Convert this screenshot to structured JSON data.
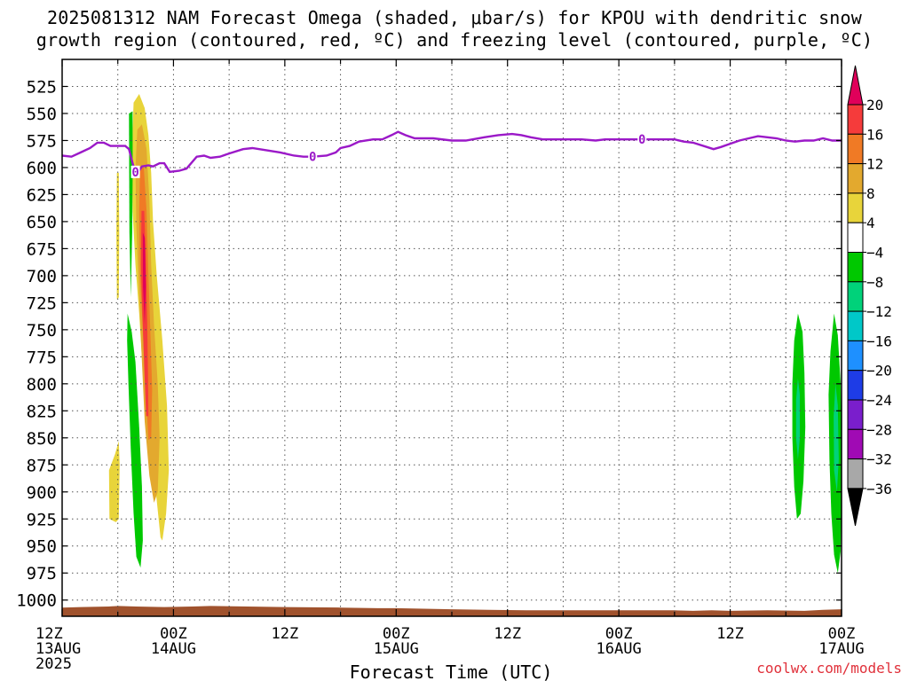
{
  "title": {
    "line1": "2025081312 NAM Forecast Omega (shaded, μbar/s) for KPOU with dendritic snow",
    "line2": "growth region (contoured, red, ºC) and freezing level (contoured, purple, ºC)"
  },
  "credit": "coolwx.com/models",
  "chart_data": {
    "type": "contour",
    "xlabel": "Forecast Time (UTC)",
    "ylabel": "",
    "xlim": [
      0,
      84
    ],
    "ylim": [
      1015,
      500
    ],
    "y_ticks": [
      525,
      550,
      575,
      600,
      625,
      650,
      675,
      700,
      725,
      750,
      775,
      800,
      825,
      850,
      875,
      900,
      925,
      950,
      975,
      1000
    ],
    "x_ticks": [
      {
        "hour": 0,
        "label": "12Z",
        "sub": "13AUG",
        "sub2": "2025"
      },
      {
        "hour": 12,
        "label": "00Z",
        "sub": "14AUG",
        "sub2": ""
      },
      {
        "hour": 24,
        "label": "12Z",
        "sub": "",
        "sub2": ""
      },
      {
        "hour": 36,
        "label": "00Z",
        "sub": "15AUG",
        "sub2": ""
      },
      {
        "hour": 48,
        "label": "12Z",
        "sub": "",
        "sub2": ""
      },
      {
        "hour": 60,
        "label": "00Z",
        "sub": "16AUG",
        "sub2": ""
      },
      {
        "hour": 72,
        "label": "12Z",
        "sub": "",
        "sub2": ""
      },
      {
        "hour": 84,
        "label": "00Z",
        "sub": "17AUG",
        "sub2": ""
      }
    ],
    "grid": true,
    "colorbar": {
      "levels": [
        20,
        16,
        12,
        8,
        4,
        -4,
        -8,
        -12,
        -16,
        -20,
        -24,
        -28,
        -32,
        -36
      ],
      "colors": [
        "#e0005a",
        "#f53b3b",
        "#f07a25",
        "#e3a92e",
        "#e8d43a",
        "#ffffff",
        "#00c800",
        "#00d27a",
        "#00c8c8",
        "#1e90ff",
        "#1e3ce6",
        "#7a1ecc",
        "#a00ab4",
        "#a8a8a8",
        "#000000"
      ]
    },
    "freezing_level": {
      "label": "0",
      "label_hours": [
        7.9,
        27.0,
        62.5
      ],
      "points": [
        [
          0,
          589
        ],
        [
          1,
          590
        ],
        [
          2,
          586
        ],
        [
          3,
          582
        ],
        [
          3.8,
          577
        ],
        [
          4.5,
          577
        ],
        [
          5.2,
          580
        ],
        [
          6,
          580
        ],
        [
          6.8,
          580
        ],
        [
          7.2,
          583
        ],
        [
          7.6,
          596
        ],
        [
          7.9,
          604
        ],
        [
          8.2,
          604
        ],
        [
          8.6,
          599
        ],
        [
          9.3,
          598
        ],
        [
          9.8,
          599
        ],
        [
          10.5,
          596
        ],
        [
          11,
          596
        ],
        [
          11.6,
          604
        ],
        [
          12.6,
          603
        ],
        [
          13.4,
          601
        ],
        [
          14.5,
          590
        ],
        [
          15.3,
          589
        ],
        [
          16,
          591
        ],
        [
          17,
          590
        ],
        [
          18,
          587
        ],
        [
          19.5,
          583
        ],
        [
          20.5,
          582
        ],
        [
          22,
          584
        ],
        [
          23.5,
          586
        ],
        [
          25,
          589
        ],
        [
          26,
          590
        ],
        [
          27,
          590
        ],
        [
          28.5,
          589
        ],
        [
          29.5,
          586
        ],
        [
          30,
          582
        ],
        [
          31,
          580
        ],
        [
          32,
          576
        ],
        [
          33.5,
          574
        ],
        [
          34.5,
          574
        ],
        [
          35.5,
          570
        ],
        [
          36.2,
          567
        ],
        [
          37,
          570
        ],
        [
          38,
          573
        ],
        [
          40,
          573
        ],
        [
          42,
          575
        ],
        [
          43.5,
          575
        ],
        [
          45.5,
          572
        ],
        [
          47,
          570
        ],
        [
          48.5,
          569
        ],
        [
          49.5,
          570
        ],
        [
          50.5,
          572
        ],
        [
          51.8,
          574
        ],
        [
          54,
          574
        ],
        [
          56,
          574
        ],
        [
          57.5,
          575
        ],
        [
          58.5,
          574
        ],
        [
          60,
          574
        ],
        [
          62,
          574
        ],
        [
          63.5,
          574
        ],
        [
          65,
          574
        ],
        [
          66,
          574
        ],
        [
          67,
          576
        ],
        [
          68,
          577
        ],
        [
          69.5,
          581
        ],
        [
          70.2,
          583
        ],
        [
          71,
          581
        ],
        [
          72,
          578
        ],
        [
          73,
          575
        ],
        [
          74,
          573
        ],
        [
          75,
          571
        ],
        [
          76,
          572
        ],
        [
          77,
          573
        ],
        [
          78,
          575
        ],
        [
          79,
          576
        ],
        [
          80,
          575
        ],
        [
          81,
          575
        ],
        [
          82,
          573
        ],
        [
          83,
          575
        ],
        [
          84,
          575
        ]
      ]
    },
    "ground_surface_hpa": [
      [
        0,
        1007
      ],
      [
        2,
        1006.5
      ],
      [
        5,
        1006
      ],
      [
        6,
        1005.5
      ],
      [
        8,
        1006
      ],
      [
        11,
        1006.5
      ],
      [
        14,
        1006
      ],
      [
        16,
        1005.5
      ],
      [
        20,
        1006
      ],
      [
        24,
        1006.5
      ],
      [
        30,
        1007
      ],
      [
        34,
        1007.5
      ],
      [
        36,
        1007.5
      ],
      [
        42,
        1008.5
      ],
      [
        46,
        1009
      ],
      [
        50,
        1009.5
      ],
      [
        56,
        1009.5
      ],
      [
        62,
        1009.5
      ],
      [
        66,
        1009.5
      ],
      [
        68,
        1010
      ],
      [
        70,
        1009.5
      ],
      [
        72,
        1010
      ],
      [
        76,
        1009.5
      ],
      [
        80,
        1010
      ],
      [
        82,
        1009
      ],
      [
        84,
        1008.5
      ]
    ],
    "omega_regions": [
      {
        "level": 4,
        "polygon": [
          [
            7.7,
            540
          ],
          [
            8.3,
            532
          ],
          [
            8.9,
            545
          ],
          [
            9.3,
            570
          ],
          [
            9.6,
            605
          ],
          [
            9.8,
            650
          ],
          [
            10.2,
            700
          ],
          [
            10.8,
            760
          ],
          [
            11.3,
            820
          ],
          [
            11.5,
            880
          ],
          [
            11.2,
            920
          ],
          [
            10.8,
            945
          ],
          [
            10.6,
            942
          ],
          [
            10.1,
            900
          ],
          [
            9.3,
            850
          ],
          [
            8.7,
            790
          ],
          [
            8.3,
            735
          ],
          [
            7.9,
            690
          ],
          [
            7.6,
            640
          ],
          [
            7.5,
            590
          ]
        ]
      },
      {
        "level": 8,
        "polygon": [
          [
            8.1,
            565
          ],
          [
            8.6,
            560
          ],
          [
            9.1,
            583
          ],
          [
            9.4,
            630
          ],
          [
            9.6,
            690
          ],
          [
            9.9,
            745
          ],
          [
            10.3,
            800
          ],
          [
            10.5,
            850
          ],
          [
            10.3,
            900
          ],
          [
            9.9,
            910
          ],
          [
            9.4,
            885
          ],
          [
            8.9,
            835
          ],
          [
            8.6,
            780
          ],
          [
            8.3,
            720
          ],
          [
            8.0,
            655
          ],
          [
            7.9,
            600
          ]
        ]
      },
      {
        "level": 12,
        "polygon": [
          [
            8.4,
            600
          ],
          [
            8.8,
            600
          ],
          [
            9.1,
            640
          ],
          [
            9.3,
            700
          ],
          [
            9.5,
            750
          ],
          [
            9.7,
            805
          ],
          [
            9.6,
            850
          ],
          [
            9.3,
            852
          ],
          [
            9.0,
            805
          ],
          [
            8.7,
            750
          ],
          [
            8.4,
            700
          ],
          [
            8.3,
            640
          ]
        ]
      },
      {
        "level": 16,
        "polygon": [
          [
            8.55,
            640
          ],
          [
            8.85,
            640
          ],
          [
            9.0,
            680
          ],
          [
            9.15,
            730
          ],
          [
            9.25,
            790
          ],
          [
            9.3,
            830
          ],
          [
            9.05,
            830
          ],
          [
            8.85,
            785
          ],
          [
            8.65,
            735
          ],
          [
            8.5,
            690
          ]
        ]
      },
      {
        "level": 20,
        "polygon": [
          [
            8.7,
            660
          ],
          [
            8.92,
            665
          ],
          [
            9.02,
            710
          ],
          [
            8.9,
            745
          ],
          [
            8.72,
            710
          ]
        ]
      },
      {
        "level": 4,
        "polygon": [
          [
            5.9,
            605
          ],
          [
            6.1,
            605
          ],
          [
            6.15,
            660
          ],
          [
            6.1,
            720
          ],
          [
            5.9,
            722
          ],
          [
            5.85,
            660
          ]
        ]
      },
      {
        "level": 4,
        "polygon": [
          [
            5.05,
            880
          ],
          [
            5.7,
            865
          ],
          [
            6.1,
            853
          ],
          [
            6.2,
            875
          ],
          [
            6.1,
            925
          ],
          [
            5.8,
            928
          ],
          [
            5.1,
            925
          ]
        ]
      },
      {
        "level": -4,
        "polygon": [
          [
            7.2,
            550
          ],
          [
            7.6,
            548
          ],
          [
            7.6,
            610
          ],
          [
            7.55,
            660
          ],
          [
            7.4,
            720
          ],
          [
            7.25,
            660
          ]
        ]
      },
      {
        "level": -4,
        "polygon": [
          [
            7.05,
            735
          ],
          [
            7.5,
            752
          ],
          [
            7.9,
            780
          ],
          [
            8.3,
            840
          ],
          [
            8.6,
            895
          ],
          [
            8.7,
            945
          ],
          [
            8.45,
            970
          ],
          [
            8.0,
            960
          ],
          [
            7.7,
            920
          ],
          [
            7.4,
            860
          ],
          [
            7.15,
            800
          ],
          [
            7.0,
            760
          ]
        ]
      },
      {
        "level": -4,
        "polygon": [
          [
            79.3,
            735
          ],
          [
            79.8,
            752
          ],
          [
            80.0,
            790
          ],
          [
            80.1,
            840
          ],
          [
            79.9,
            890
          ],
          [
            79.6,
            920
          ],
          [
            79.2,
            925
          ],
          [
            78.9,
            895
          ],
          [
            78.7,
            850
          ],
          [
            78.7,
            800
          ],
          [
            78.9,
            760
          ]
        ]
      },
      {
        "level": -4,
        "polygon": [
          [
            83.2,
            735
          ],
          [
            83.6,
            755
          ],
          [
            83.9,
            800
          ],
          [
            84.0,
            850
          ],
          [
            84.0,
            900
          ],
          [
            83.9,
            955
          ],
          [
            83.6,
            975
          ],
          [
            83.2,
            958
          ],
          [
            82.9,
            920
          ],
          [
            82.7,
            870
          ],
          [
            82.6,
            810
          ],
          [
            82.8,
            770
          ]
        ]
      },
      {
        "level": -8,
        "polygon": [
          [
            79.3,
            795
          ],
          [
            79.5,
            810
          ],
          [
            79.5,
            850
          ],
          [
            79.3,
            870
          ],
          [
            79.1,
            850
          ],
          [
            79.1,
            815
          ]
        ]
      },
      {
        "level": -8,
        "polygon": [
          [
            83.35,
            800
          ],
          [
            83.6,
            820
          ],
          [
            83.7,
            870
          ],
          [
            83.5,
            900
          ],
          [
            83.2,
            880
          ],
          [
            83.15,
            830
          ]
        ]
      }
    ]
  }
}
